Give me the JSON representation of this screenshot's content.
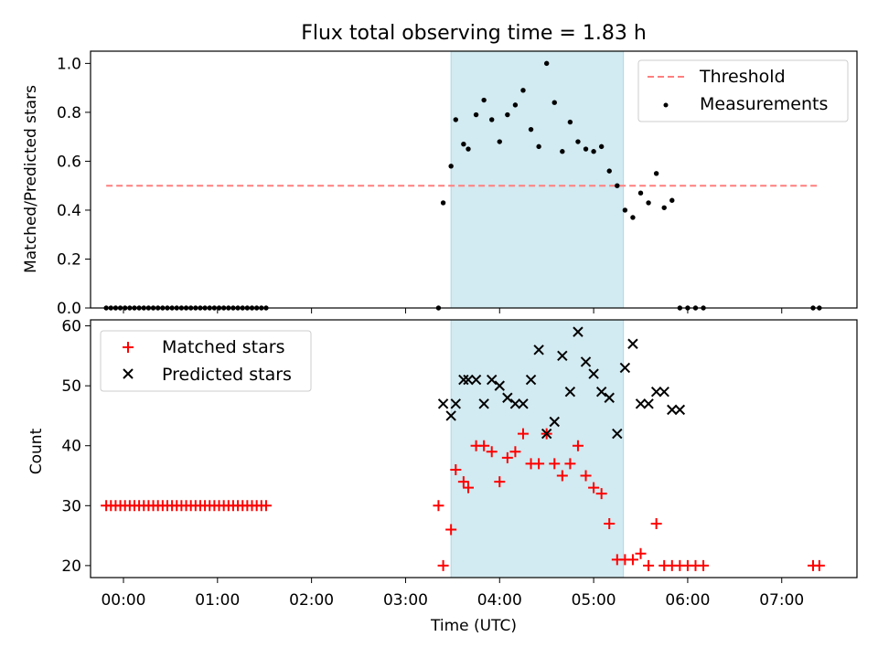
{
  "title": "Flux total observing time = 1.83 h",
  "shaded_interval": {
    "start": "03:29",
    "end": "05:19",
    "color": "#add8e6"
  },
  "x_axis": {
    "label": "Time (UTC)",
    "range": [
      "23:39",
      "07:48"
    ],
    "ticks": [
      "00:00",
      "01:00",
      "02:00",
      "03:00",
      "04:00",
      "05:00",
      "06:00",
      "07:00"
    ]
  },
  "colors": {
    "threshold": "#ff7f7f",
    "measurements": "#000000",
    "matched": "#ff0000",
    "predicted": "#000000"
  },
  "chart_data": [
    {
      "type": "scatter",
      "ylabel": "Matched/Predicted stars",
      "ylim": [
        0,
        1.05
      ],
      "yticks": [
        "0.0",
        "0.2",
        "0.4",
        "0.6",
        "0.8",
        "1.0"
      ],
      "legend": {
        "position": "top-right",
        "entries": [
          "Threshold",
          "Measurements"
        ]
      },
      "threshold": {
        "name": "Threshold",
        "value": 0.5,
        "x": [
          "23:49",
          "07:24"
        ]
      },
      "series": [
        {
          "name": "Measurements",
          "x": [
            "23:49",
            "23:52",
            "23:55",
            "23:58",
            "00:01",
            "00:04",
            "00:07",
            "00:10",
            "00:13",
            "00:16",
            "00:19",
            "00:22",
            "00:25",
            "00:28",
            "00:31",
            "00:34",
            "00:37",
            "00:40",
            "00:43",
            "00:46",
            "00:49",
            "00:52",
            "00:55",
            "00:58",
            "01:01",
            "01:04",
            "01:07",
            "01:10",
            "01:13",
            "01:16",
            "01:19",
            "01:22",
            "01:25",
            "01:28",
            "01:31",
            "03:21",
            "03:24",
            "03:29",
            "03:32",
            "03:37",
            "03:40",
            "03:45",
            "03:50",
            "03:55",
            "04:00",
            "04:05",
            "04:10",
            "04:15",
            "04:20",
            "04:25",
            "04:30",
            "04:35",
            "04:40",
            "04:45",
            "04:50",
            "04:55",
            "05:00",
            "05:05",
            "05:10",
            "05:15",
            "05:20",
            "05:25",
            "05:30",
            "05:35",
            "05:40",
            "05:45",
            "05:50",
            "05:55",
            "06:00",
            "06:05",
            "06:10",
            "07:20",
            "07:24"
          ],
          "y": [
            0,
            0,
            0,
            0,
            0,
            0,
            0,
            0,
            0,
            0,
            0,
            0,
            0,
            0,
            0,
            0,
            0,
            0,
            0,
            0,
            0,
            0,
            0,
            0,
            0,
            0,
            0,
            0,
            0,
            0,
            0,
            0,
            0,
            0,
            0,
            0,
            0.43,
            0.58,
            0.77,
            0.67,
            0.65,
            0.79,
            0.85,
            0.77,
            0.68,
            0.79,
            0.83,
            0.89,
            0.73,
            0.66,
            1.0,
            0.84,
            0.64,
            0.76,
            0.68,
            0.65,
            0.64,
            0.66,
            0.56,
            0.5,
            0.4,
            0.37,
            0.47,
            0.43,
            0.55,
            0.41,
            0.44,
            0,
            0,
            0,
            0,
            0,
            0
          ]
        }
      ]
    },
    {
      "type": "scatter",
      "ylabel": "Count",
      "ylim": [
        18,
        61
      ],
      "yticks": [
        "20",
        "30",
        "40",
        "50",
        "60"
      ],
      "legend": {
        "position": "top-left",
        "entries": [
          "Matched stars",
          "Predicted stars"
        ]
      },
      "series": [
        {
          "name": "Matched stars",
          "marker": "+",
          "x": [
            "23:49",
            "23:52",
            "23:55",
            "23:58",
            "00:01",
            "00:04",
            "00:07",
            "00:10",
            "00:13",
            "00:16",
            "00:19",
            "00:22",
            "00:25",
            "00:28",
            "00:31",
            "00:34",
            "00:37",
            "00:40",
            "00:43",
            "00:46",
            "00:49",
            "00:52",
            "00:55",
            "00:58",
            "01:01",
            "01:04",
            "01:07",
            "01:10",
            "01:13",
            "01:16",
            "01:19",
            "01:22",
            "01:25",
            "01:28",
            "01:31",
            "03:21",
            "03:24",
            "03:29",
            "03:32",
            "03:37",
            "03:40",
            "03:45",
            "03:50",
            "03:55",
            "04:00",
            "04:05",
            "04:10",
            "04:15",
            "04:20",
            "04:25",
            "04:30",
            "04:35",
            "04:40",
            "04:45",
            "04:50",
            "04:55",
            "05:00",
            "05:05",
            "05:10",
            "05:15",
            "05:20",
            "05:25",
            "05:30",
            "05:35",
            "05:40",
            "05:45",
            "05:50",
            "05:55",
            "06:00",
            "06:05",
            "06:10",
            "07:20",
            "07:24"
          ],
          "y": [
            30,
            30,
            30,
            30,
            30,
            30,
            30,
            30,
            30,
            30,
            30,
            30,
            30,
            30,
            30,
            30,
            30,
            30,
            30,
            30,
            30,
            30,
            30,
            30,
            30,
            30,
            30,
            30,
            30,
            30,
            30,
            30,
            30,
            30,
            30,
            30,
            20,
            26,
            36,
            34,
            33,
            40,
            40,
            39,
            34,
            38,
            39,
            42,
            37,
            37,
            42,
            37,
            35,
            37,
            40,
            35,
            33,
            32,
            27,
            21,
            21,
            21,
            22,
            20,
            27,
            20,
            20,
            20,
            20,
            20,
            20,
            20,
            20
          ]
        },
        {
          "name": "Predicted stars",
          "marker": "x",
          "x": [
            "03:24",
            "03:29",
            "03:32",
            "03:37",
            "03:40",
            "03:45",
            "03:50",
            "03:55",
            "04:00",
            "04:05",
            "04:10",
            "04:15",
            "04:20",
            "04:25",
            "04:30",
            "04:35",
            "04:40",
            "04:45",
            "04:50",
            "04:55",
            "05:00",
            "05:05",
            "05:10",
            "05:15",
            "05:20",
            "05:25",
            "05:30",
            "05:35",
            "05:40",
            "05:45",
            "05:50",
            "05:55"
          ],
          "y": [
            47,
            45,
            47,
            51,
            51,
            51,
            47,
            51,
            50,
            48,
            47,
            47,
            51,
            56,
            42,
            44,
            55,
            49,
            59,
            54,
            52,
            49,
            48,
            42,
            53,
            57,
            47,
            47,
            49,
            49,
            46,
            46
          ]
        }
      ]
    }
  ]
}
